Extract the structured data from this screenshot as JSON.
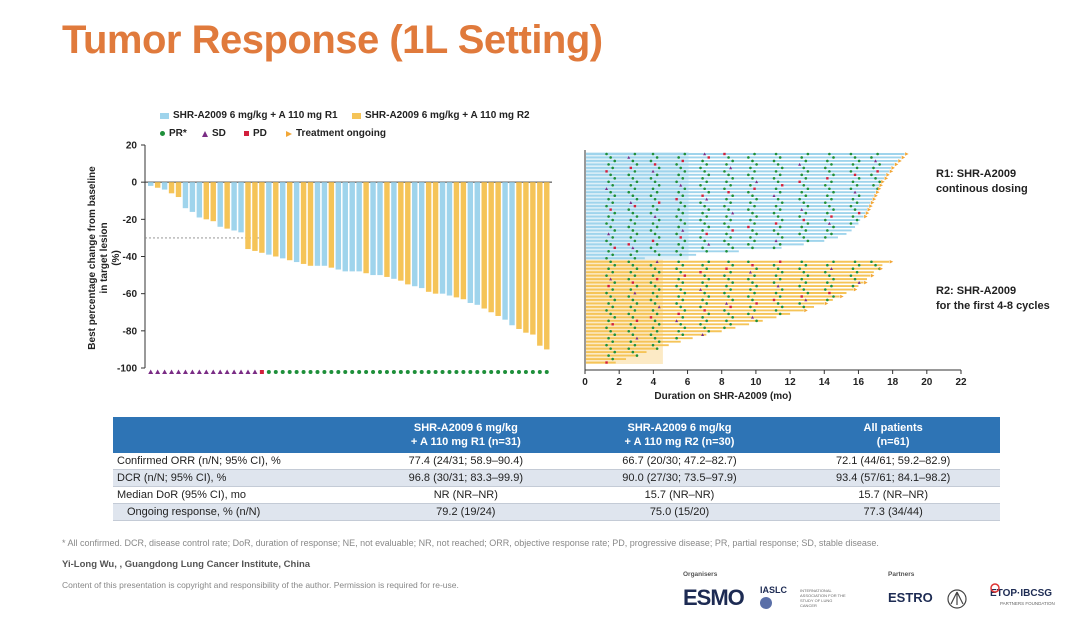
{
  "title": "Tumor Response (1L Setting)",
  "colors": {
    "r1": "#9fd4ec",
    "r2": "#f5c458",
    "pr": "#1e8f3a",
    "sd": "#7a2c85",
    "pd": "#d21f3c",
    "ongoing": "#f2a737",
    "accent": "#e07a3c",
    "header": "#2e74b5"
  },
  "legend": {
    "r1": "SHR-A2009 6 mg/kg + A 110 mg R1",
    "r2": "SHR-A2009 6 mg/kg + A 110 mg R2",
    "pr": "PR*",
    "sd": "SD",
    "pd": "PD",
    "ongoing": "Treatment ongoing"
  },
  "chart_data": [
    {
      "type": "bar",
      "subtype": "waterfall",
      "ylabel": "Best percentage change from baseline in target lesion (%)",
      "ylim": [
        -100,
        20
      ],
      "yticks": [
        20,
        0,
        -20,
        -40,
        -60,
        -80,
        -100
      ],
      "reference_line": -30,
      "series": [
        {
          "name": "SHR-A2009 6 mg/kg + A 110 mg R1",
          "key": "r1"
        },
        {
          "name": "SHR-A2009 6 mg/kg + A 110 mg R2",
          "key": "r2"
        }
      ],
      "bars": [
        {
          "arm": "r1",
          "value": -2
        },
        {
          "arm": "r2",
          "value": -3
        },
        {
          "arm": "r1",
          "value": -4
        },
        {
          "arm": "r2",
          "value": -6
        },
        {
          "arm": "r2",
          "value": -8
        },
        {
          "arm": "r1",
          "value": -14
        },
        {
          "arm": "r1",
          "value": -16
        },
        {
          "arm": "r1",
          "value": -19
        },
        {
          "arm": "r2",
          "value": -20
        },
        {
          "arm": "r2",
          "value": -21
        },
        {
          "arm": "r1",
          "value": -24
        },
        {
          "arm": "r2",
          "value": -25
        },
        {
          "arm": "r1",
          "value": -26
        },
        {
          "arm": "r1",
          "value": -27
        },
        {
          "arm": "r2",
          "value": -36
        },
        {
          "arm": "r2",
          "value": -37
        },
        {
          "arm": "r2",
          "value": -38
        },
        {
          "arm": "r1",
          "value": -39
        },
        {
          "arm": "r2",
          "value": -40
        },
        {
          "arm": "r1",
          "value": -41
        },
        {
          "arm": "r2",
          "value": -42
        },
        {
          "arm": "r1",
          "value": -43
        },
        {
          "arm": "r2",
          "value": -44
        },
        {
          "arm": "r2",
          "value": -45
        },
        {
          "arm": "r1",
          "value": -45
        },
        {
          "arm": "r1",
          "value": -45
        },
        {
          "arm": "r2",
          "value": -46
        },
        {
          "arm": "r1",
          "value": -47
        },
        {
          "arm": "r1",
          "value": -48
        },
        {
          "arm": "r1",
          "value": -48
        },
        {
          "arm": "r1",
          "value": -48
        },
        {
          "arm": "r2",
          "value": -49
        },
        {
          "arm": "r1",
          "value": -50
        },
        {
          "arm": "r1",
          "value": -50
        },
        {
          "arm": "r2",
          "value": -51
        },
        {
          "arm": "r1",
          "value": -52
        },
        {
          "arm": "r2",
          "value": -53
        },
        {
          "arm": "r2",
          "value": -55
        },
        {
          "arm": "r1",
          "value": -56
        },
        {
          "arm": "r1",
          "value": -57
        },
        {
          "arm": "r2",
          "value": -59
        },
        {
          "arm": "r2",
          "value": -60
        },
        {
          "arm": "r1",
          "value": -60
        },
        {
          "arm": "r1",
          "value": -61
        },
        {
          "arm": "r2",
          "value": -62
        },
        {
          "arm": "r2",
          "value": -63
        },
        {
          "arm": "r1",
          "value": -65
        },
        {
          "arm": "r1",
          "value": -66
        },
        {
          "arm": "r2",
          "value": -68
        },
        {
          "arm": "r2",
          "value": -70
        },
        {
          "arm": "r2",
          "value": -72
        },
        {
          "arm": "r1",
          "value": -74
        },
        {
          "arm": "r1",
          "value": -77
        },
        {
          "arm": "r2",
          "value": -79
        },
        {
          "arm": "r2",
          "value": -81
        },
        {
          "arm": "r2",
          "value": -82
        },
        {
          "arm": "r2",
          "value": -88
        },
        {
          "arm": "r2",
          "value": -90
        }
      ],
      "response_markers": [
        "SD",
        "SD",
        "SD",
        "SD",
        "SD",
        "SD",
        "SD",
        "SD",
        "SD",
        "SD",
        "SD",
        "SD",
        "SD",
        "SD",
        "SD",
        "SD",
        "PD",
        "PR",
        "PR",
        "PR",
        "PR",
        "PR",
        "PR",
        "PR",
        "PR",
        "PR",
        "PR",
        "PR",
        "PR",
        "PR",
        "PR",
        "PR",
        "PR",
        "PR",
        "PR",
        "PR",
        "PR",
        "PR",
        "PR",
        "PR",
        "PR",
        "PR",
        "PR",
        "PR",
        "PR",
        "PR",
        "PR",
        "PR",
        "PR",
        "PR",
        "PR",
        "PR",
        "PR",
        "PR",
        "PR",
        "PR",
        "PR",
        "PR"
      ]
    },
    {
      "type": "swimmer",
      "xlabel": "Duration on SHR-A2009 (mo)",
      "xlim": [
        0,
        22
      ],
      "xticks": [
        0,
        2,
        4,
        6,
        8,
        10,
        12,
        14,
        16,
        18,
        20,
        22
      ],
      "r1": {
        "count": 31,
        "durations": [
          18.7,
          18.5,
          18.3,
          18.1,
          17.9,
          17.8,
          17.6,
          17.5,
          17.3,
          17.2,
          17.1,
          17.0,
          16.9,
          16.8,
          16.7,
          16.6,
          16.5,
          16.4,
          16.3,
          16.1,
          16.0,
          15.8,
          15.6,
          15.3,
          14.8,
          14.0,
          12.8,
          11.5,
          9.0,
          6.5,
          3.5
        ],
        "ongoing_count": 19
      },
      "r2": {
        "count": 30,
        "durations": [
          17.8,
          17.4,
          17.2,
          16.9,
          16.7,
          16.5,
          16.3,
          16.0,
          15.7,
          15.3,
          14.9,
          14.5,
          14.0,
          13.4,
          12.8,
          12.0,
          11.2,
          10.4,
          9.6,
          8.8,
          8.0,
          7.1,
          6.3,
          5.6,
          4.9,
          4.2,
          3.6,
          3.0,
          2.4,
          1.8
        ],
        "ongoing_count": 15
      },
      "r1_fill_until": 6.0,
      "r2_fill_until": 4.5,
      "annotations": {
        "r1": [
          "R1: SHR-A2009",
          "continous dosing"
        ],
        "r2": [
          "R2: SHR-A2009",
          "for the first 4-8 cycles"
        ]
      }
    }
  ],
  "table": {
    "headers": [
      "",
      "SHR-A2009 6 mg/kg\n+ A 110 mg R1 (n=31)",
      "SHR-A2009 6 mg/kg\n+ A 110 mg R2 (n=30)",
      "All patients\n(n=61)"
    ],
    "rows": [
      [
        "Confirmed ORR (n/N; 95% CI), %",
        "77.4 (24/31; 58.9–90.4)",
        "66.7 (20/30; 47.2–82.7)",
        "72.1 (44/61; 59.2–82.9)"
      ],
      [
        "DCR (n/N; 95% CI), %",
        "96.8 (30/31; 83.3–99.9)",
        "90.0 (27/30; 73.5–97.9)",
        "93.4 (57/61; 84.1–98.2)"
      ],
      [
        "Median DoR (95% CI), mo",
        "NR (NR–NR)",
        "15.7 (NR–NR)",
        "15.7 (NR–NR)"
      ],
      [
        "Ongoing response, % (n/N)",
        "79.2 (19/24)",
        "75.0 (15/20)",
        "77.3 (34/44)"
      ]
    ]
  },
  "footnote": "* All confirmed. DCR, disease control rate; DoR, duration of response; NE, not evaluable; NR, not reached; ORR, objective response rate; PD, progressive disease; PR, partial response; SD, stable disease.",
  "author": "Yi-Long Wu, , Guangdong Lung Cancer Institute, China",
  "copyright": "Content of this presentation is copyright and responsibility of the author. Permission is required for re-use.",
  "logos": {
    "organisers_label": "Organisers",
    "partners_label": "Partners",
    "esmo": "ESMO",
    "iaslc": "IASLC",
    "iaslc_sub": "INTERNATIONAL ASSOCIATION FOR THE STUDY OF LUNG CANCER",
    "estro": "ESTRO",
    "etop": "ETOP·IBCSG",
    "etop_sub": "PARTNERS FOUNDATION"
  }
}
